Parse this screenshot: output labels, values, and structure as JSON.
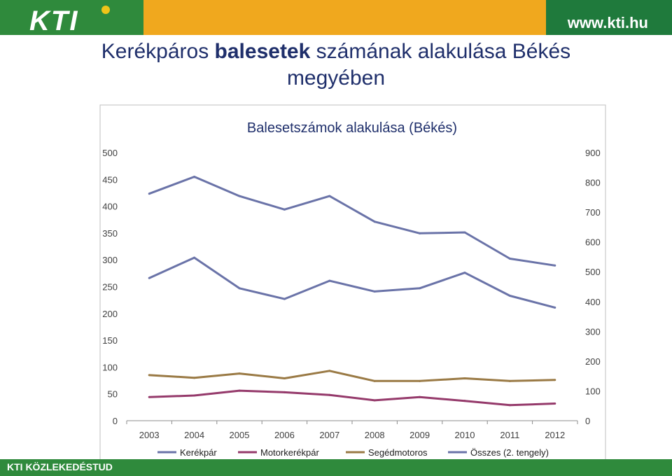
{
  "header": {
    "logo_text": "KTI",
    "website": "www.kti.hu",
    "colors": {
      "orange": "#f0a81e",
      "green": "#1f7a3c"
    }
  },
  "page_title": {
    "part1": "Kerékpáros ",
    "bold": "balesetek",
    "part2": " számának alakulása Békés megyében"
  },
  "footer": {
    "text": "KTI KÖZLEKEDÉSTUD"
  },
  "chart_data": {
    "type": "line",
    "title": "Balesetszámok alakulása (Békés)",
    "categories": [
      "2003",
      "2004",
      "2005",
      "2006",
      "2007",
      "2008",
      "2009",
      "2010",
      "2011",
      "2012"
    ],
    "y_left": {
      "min": 0,
      "max": 500,
      "ticks": [
        "0",
        "50",
        "100",
        "150",
        "200",
        "250",
        "300",
        "350",
        "400",
        "450",
        "500"
      ]
    },
    "y_right": {
      "min": 0,
      "max": 900,
      "ticks": [
        "0",
        "100",
        "200",
        "300",
        "400",
        "500",
        "600",
        "700",
        "800",
        "900"
      ]
    },
    "legend_position": "bottom",
    "series": [
      {
        "name": "Kerékpár",
        "axis": "left",
        "color": "#6a73a8",
        "values": [
          266,
          304,
          247,
          227,
          261,
          241,
          247,
          276,
          233,
          211
        ]
      },
      {
        "name": "Motorkerékpár",
        "axis": "left",
        "color": "#953a6b",
        "values": [
          44,
          47,
          56,
          53,
          48,
          38,
          44,
          37,
          29,
          32
        ]
      },
      {
        "name": "Segédmotoros",
        "axis": "left",
        "color": "#9a7a45",
        "values": [
          85,
          80,
          88,
          79,
          93,
          74,
          74,
          79,
          74,
          76
        ]
      },
      {
        "name": "Összes (2. tengely)",
        "axis": "right",
        "color": "#6a73a8",
        "values": [
          762,
          819,
          754,
          709,
          754,
          668,
          629,
          632,
          544,
          521
        ]
      }
    ]
  }
}
